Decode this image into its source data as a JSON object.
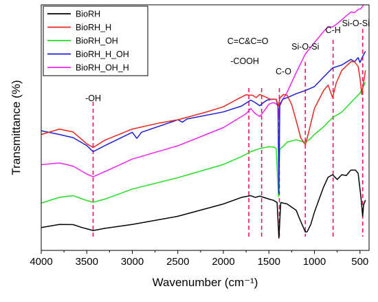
{
  "chart_data": {
    "type": "line",
    "xlabel": "Wavenumber (cm⁻¹)",
    "ylabel": "Transmittance (%)",
    "xlim": [
      4000,
      400
    ],
    "x_reversed": true,
    "x_ticks": [
      4000,
      3500,
      3000,
      2500,
      2000,
      1500,
      1000,
      500
    ],
    "y_ticks_shown": false,
    "grid": false,
    "legend_position": "top-left",
    "y_units": "relative transmittance (arbitrary, curves offset)",
    "ylim": [
      0,
      100
    ],
    "series": [
      {
        "name": "BioRH",
        "color": "#000000",
        "points": [
          [
            4000,
            9.3
          ],
          [
            3800,
            10.6
          ],
          [
            3650,
            10.5
          ],
          [
            3550,
            9.3
          ],
          [
            3430,
            8.1
          ],
          [
            3300,
            9.0
          ],
          [
            3000,
            10.6
          ],
          [
            2500,
            13.9
          ],
          [
            2000,
            18.9
          ],
          [
            1800,
            21.6
          ],
          [
            1700,
            22.3
          ],
          [
            1650,
            21.6
          ],
          [
            1600,
            22.1
          ],
          [
            1500,
            20.9
          ],
          [
            1450,
            20.4
          ],
          [
            1410,
            19.5
          ],
          [
            1390,
            5.0
          ],
          [
            1370,
            19.5
          ],
          [
            1300,
            18.9
          ],
          [
            1200,
            16.3
          ],
          [
            1160,
            12.6
          ],
          [
            1100,
            7.5
          ],
          [
            1080,
            7.6
          ],
          [
            1040,
            10.6
          ],
          [
            1000,
            15.6
          ],
          [
            900,
            25.8
          ],
          [
            850,
            29.8
          ],
          [
            800,
            30.8
          ],
          [
            750,
            28.9
          ],
          [
            700,
            30.8
          ],
          [
            650,
            30.5
          ],
          [
            600,
            32.7
          ],
          [
            550,
            32.7
          ],
          [
            520,
            31.4
          ],
          [
            490,
            21.9
          ],
          [
            470,
            13.9
          ],
          [
            460,
            18.4
          ],
          [
            440,
            20.5
          ]
        ]
      },
      {
        "name": "BioRH_H",
        "color": "#e8251e",
        "points": [
          [
            4000,
            47.2
          ],
          [
            3800,
            49.4
          ],
          [
            3650,
            48.2
          ],
          [
            3500,
            43.4
          ],
          [
            3430,
            41.9
          ],
          [
            3300,
            44.9
          ],
          [
            3000,
            49.4
          ],
          [
            2700,
            51.9
          ],
          [
            2500,
            53.2
          ],
          [
            2200,
            56.2
          ],
          [
            2000,
            58.5
          ],
          [
            1850,
            61.5
          ],
          [
            1750,
            63.4
          ],
          [
            1720,
            63.2
          ],
          [
            1680,
            63.2
          ],
          [
            1640,
            62.2
          ],
          [
            1600,
            63.5
          ],
          [
            1550,
            62.7
          ],
          [
            1480,
            61.5
          ],
          [
            1420,
            61.5
          ],
          [
            1395,
            58.8
          ],
          [
            1380,
            62.0
          ],
          [
            1340,
            63.5
          ],
          [
            1300,
            63.2
          ],
          [
            1250,
            59.4
          ],
          [
            1200,
            52.8
          ],
          [
            1150,
            45.8
          ],
          [
            1100,
            43.0
          ],
          [
            1060,
            48.6
          ],
          [
            1000,
            57.8
          ],
          [
            900,
            65.1
          ],
          [
            850,
            67.3
          ],
          [
            800,
            62.2
          ],
          [
            760,
            68.2
          ],
          [
            700,
            73.3
          ],
          [
            600,
            76.8
          ],
          [
            560,
            76.8
          ],
          [
            520,
            74.9
          ],
          [
            500,
            70.2
          ],
          [
            480,
            63.5
          ],
          [
            460,
            68.2
          ],
          [
            440,
            73.3
          ]
        ]
      },
      {
        "name": "BioRH_OH",
        "color": "#22dd22",
        "points": [
          [
            4000,
            19.3
          ],
          [
            3800,
            21.6
          ],
          [
            3650,
            22.3
          ],
          [
            3500,
            20.3
          ],
          [
            3430,
            19.6
          ],
          [
            3300,
            20.9
          ],
          [
            3000,
            25.0
          ],
          [
            2500,
            29.6
          ],
          [
            2000,
            35.0
          ],
          [
            1800,
            38.2
          ],
          [
            1700,
            40.2
          ],
          [
            1600,
            41.5
          ],
          [
            1500,
            42.2
          ],
          [
            1450,
            42.1
          ],
          [
            1420,
            41.5
          ],
          [
            1395,
            21.9
          ],
          [
            1380,
            41.2
          ],
          [
            1340,
            42.5
          ],
          [
            1300,
            44.1
          ],
          [
            1200,
            45.0
          ],
          [
            1150,
            44.5
          ],
          [
            1100,
            44.1
          ],
          [
            1050,
            45.3
          ],
          [
            1000,
            47.2
          ],
          [
            900,
            50.3
          ],
          [
            800,
            54.1
          ],
          [
            700,
            56.3
          ],
          [
            600,
            60.2
          ],
          [
            500,
            64.0
          ],
          [
            460,
            67.0
          ],
          [
            440,
            68.5
          ]
        ]
      },
      {
        "name": "BioRH_H_OH",
        "color": "#1c1cd6",
        "points": [
          [
            4000,
            48.7
          ],
          [
            3800,
            47.2
          ],
          [
            3650,
            45.9
          ],
          [
            3500,
            42.7
          ],
          [
            3430,
            40.2
          ],
          [
            3300,
            42.7
          ],
          [
            3000,
            48.1
          ],
          [
            2950,
            45.6
          ],
          [
            2900,
            48.1
          ],
          [
            2500,
            53.2
          ],
          [
            2450,
            52.2
          ],
          [
            2400,
            53.5
          ],
          [
            2000,
            56.4
          ],
          [
            1800,
            58.8
          ],
          [
            1700,
            61.2
          ],
          [
            1650,
            60.2
          ],
          [
            1600,
            58.9
          ],
          [
            1560,
            60.2
          ],
          [
            1520,
            61.2
          ],
          [
            1460,
            61.6
          ],
          [
            1420,
            61.5
          ],
          [
            1400,
            58.5
          ],
          [
            1390,
            23.2
          ],
          [
            1380,
            58.9
          ],
          [
            1350,
            61.5
          ],
          [
            1300,
            62.2
          ],
          [
            1200,
            63.8
          ],
          [
            1100,
            65.1
          ],
          [
            1000,
            66.7
          ],
          [
            900,
            70.6
          ],
          [
            800,
            74.3
          ],
          [
            700,
            75.5
          ],
          [
            600,
            77.8
          ],
          [
            560,
            76.8
          ],
          [
            520,
            78.5
          ],
          [
            500,
            76.5
          ],
          [
            480,
            78.2
          ],
          [
            440,
            81.1
          ]
        ]
      },
      {
        "name": "BioRH_OH_H",
        "color": "#ee22ee",
        "points": [
          [
            4000,
            34.9
          ],
          [
            3800,
            35.6
          ],
          [
            3650,
            34.3
          ],
          [
            3500,
            31.1
          ],
          [
            3430,
            30.0
          ],
          [
            3300,
            32.1
          ],
          [
            3000,
            37.2
          ],
          [
            2500,
            42.6
          ],
          [
            2000,
            50.0
          ],
          [
            1800,
            54.5
          ],
          [
            1750,
            55.7
          ],
          [
            1700,
            57.8
          ],
          [
            1650,
            55.7
          ],
          [
            1600,
            54.5
          ],
          [
            1560,
            56.4
          ],
          [
            1500,
            59.5
          ],
          [
            1450,
            60.2
          ],
          [
            1420,
            59.6
          ],
          [
            1400,
            58.9
          ],
          [
            1390,
            54.7
          ],
          [
            1380,
            59.6
          ],
          [
            1300,
            64.4
          ],
          [
            1200,
            72.4
          ],
          [
            1100,
            80.0
          ],
          [
            1000,
            84.6
          ],
          [
            900,
            89.1
          ],
          [
            850,
            91.1
          ],
          [
            800,
            91.0
          ],
          [
            750,
            92.3
          ],
          [
            700,
            93.9
          ],
          [
            600,
            97.1
          ],
          [
            560,
            96.8
          ],
          [
            520,
            98.1
          ],
          [
            490,
            98.4
          ],
          [
            460,
            100.0
          ]
        ]
      }
    ],
    "vlines": [
      {
        "x": 3430,
        "label": "-OH"
      },
      {
        "x": 1720,
        "label": "-COOH"
      },
      {
        "x": 1580,
        "label": "C=C&C=O"
      },
      {
        "x": 1385,
        "label": "C-O"
      },
      {
        "x": 1100,
        "label": "Si-O-Si"
      },
      {
        "x": 795,
        "label": "C-H"
      },
      {
        "x": 470,
        "label": "Si-O-Si"
      }
    ],
    "vline_color": "#ee1166"
  }
}
